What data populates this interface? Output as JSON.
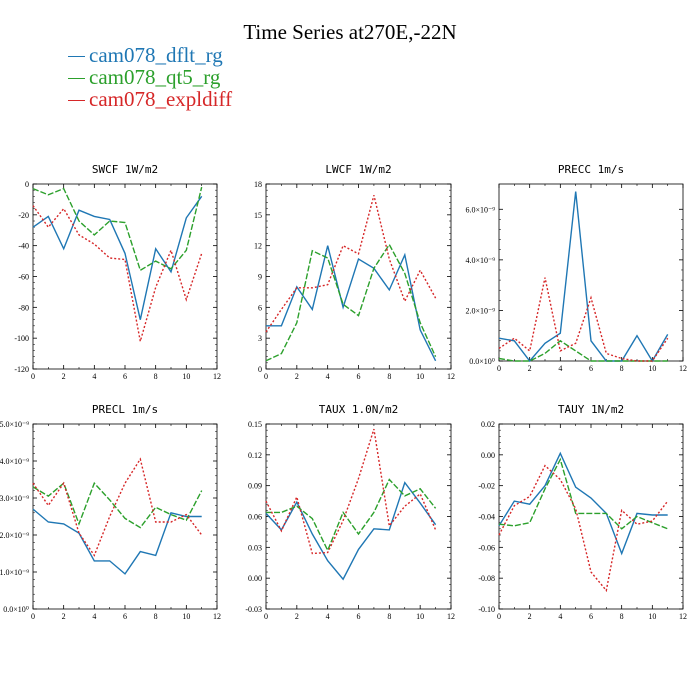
{
  "title": "Time Series at270E,-22N",
  "legend": [
    {
      "label": "cam078_dflt_rg",
      "color": "#1f77b4"
    },
    {
      "label": "cam078_qt5_rg",
      "color": "#2ca02c"
    },
    {
      "label": "cam078_expldiff",
      "color": "#d62728"
    }
  ],
  "chart_data": [
    {
      "type": "line",
      "title": "SWCF   1W/m2",
      "x": [
        0,
        1,
        2,
        3,
        4,
        5,
        6,
        7,
        8,
        9,
        10,
        11
      ],
      "xlim": [
        0,
        12
      ],
      "xticks": [
        "0",
        "2",
        "4",
        "6",
        "8",
        "10",
        "12"
      ],
      "ylim": [
        -120,
        0
      ],
      "yticks": [
        "0",
        "-20",
        "-40",
        "-60",
        "-80",
        "-100",
        "-120"
      ],
      "series": [
        {
          "name": "cam078_dflt_rg",
          "values": [
            -28,
            -21,
            -42,
            -17,
            -21,
            -23,
            -45,
            -88,
            -42,
            -57,
            -22,
            -8
          ]
        },
        {
          "name": "cam078_qt5_rg",
          "values": [
            -3,
            -7,
            -3,
            -24,
            -33,
            -24,
            -25,
            -56,
            -50,
            -55,
            -43,
            -2
          ]
        },
        {
          "name": "cam078_expldiff",
          "values": [
            -14,
            -28,
            -16,
            -33,
            -39,
            -48,
            -49,
            -102,
            -67,
            -43,
            -75,
            -45
          ]
        }
      ]
    },
    {
      "type": "line",
      "title": "LWCF   1W/m2",
      "x": [
        0,
        1,
        2,
        3,
        4,
        5,
        6,
        7,
        8,
        9,
        10,
        11
      ],
      "xlim": [
        0,
        12
      ],
      "xticks": [
        "0",
        "2",
        "4",
        "6",
        "8",
        "10",
        "12"
      ],
      "ylim": [
        0,
        18
      ],
      "yticks": [
        "0",
        "3",
        "6",
        "9",
        "12",
        "15",
        "18"
      ],
      "series": [
        {
          "name": "cam078_dflt_rg",
          "values": [
            4.2,
            4.2,
            8.0,
            5.8,
            12.0,
            6.0,
            10.7,
            9.8,
            7.7,
            11.1,
            3.8,
            0.8
          ]
        },
        {
          "name": "cam078_qt5_rg",
          "values": [
            0.8,
            1.5,
            4.5,
            11.5,
            10.8,
            6.3,
            5.2,
            9.8,
            12.1,
            9.3,
            4.5,
            1.2
          ]
        },
        {
          "name": "cam078_expldiff",
          "values": [
            3.6,
            5.8,
            7.9,
            7.9,
            8.2,
            12.0,
            11.2,
            16.9,
            10.7,
            6.6,
            9.6,
            6.9
          ]
        }
      ]
    },
    {
      "type": "line",
      "title": "PRECC   1m/s",
      "x": [
        0,
        1,
        2,
        3,
        4,
        5,
        6,
        7,
        8,
        9,
        10,
        11
      ],
      "xlim": [
        0,
        12
      ],
      "xticks": [
        "0",
        "2",
        "4",
        "6",
        "8",
        "10",
        "12"
      ],
      "ylim": [
        0,
        7e-09
      ],
      "ytick_values": [
        0,
        2e-09,
        4e-09,
        6e-09
      ],
      "yticks": [
        "0.0×10⁰",
        "2.0×10⁻⁹",
        "4.0×10⁻⁹",
        "6.0×10⁻⁹"
      ],
      "series": [
        {
          "name": "cam078_dflt_rg",
          "values": [
            9e-10,
            8e-10,
            0,
            7e-10,
            1.1e-09,
            6.7e-09,
            8e-10,
            0,
            0,
            1e-09,
            0,
            1.05e-09
          ]
        },
        {
          "name": "cam078_qt5_rg",
          "values": [
            1e-10,
            0,
            0,
            3e-10,
            8e-10,
            4e-10,
            0,
            0,
            0,
            0,
            0,
            0
          ]
        },
        {
          "name": "cam078_expldiff",
          "values": [
            5e-10,
            9e-10,
            4e-10,
            3.3e-09,
            4e-10,
            7e-10,
            2.5e-09,
            3e-10,
            1e-10,
            0,
            0,
            9e-10
          ]
        }
      ]
    },
    {
      "type": "line",
      "title": "PRECL   1m/s",
      "x": [
        0,
        1,
        2,
        3,
        4,
        5,
        6,
        7,
        8,
        9,
        10,
        11
      ],
      "xlim": [
        0,
        12
      ],
      "xticks": [
        "0",
        "2",
        "4",
        "6",
        "8",
        "10",
        "12"
      ],
      "ylim": [
        0,
        5e-09
      ],
      "ytick_values": [
        0,
        1e-09,
        2e-09,
        3e-09,
        4e-09,
        5e-09
      ],
      "yticks": [
        "0.0×10⁰",
        "1.0×10⁻⁹",
        "2.0×10⁻⁹",
        "3.0×10⁻⁹",
        "4.0×10⁻⁹",
        "5.0×10⁻⁹"
      ],
      "series": [
        {
          "name": "cam078_dflt_rg",
          "values": [
            2.7e-09,
            2.35e-09,
            2.3e-09,
            2.05e-09,
            1.3e-09,
            1.3e-09,
            9.5e-10,
            1.55e-09,
            1.45e-09,
            2.6e-09,
            2.5e-09,
            2.5e-09
          ]
        },
        {
          "name": "cam078_qt5_rg",
          "values": [
            3.3e-09,
            3.05e-09,
            3.4e-09,
            2.3e-09,
            3.4e-09,
            2.95e-09,
            2.45e-09,
            2.2e-09,
            2.75e-09,
            2.55e-09,
            2.4e-09,
            3.2e-09
          ]
        },
        {
          "name": "cam078_expldiff",
          "values": [
            3.4e-09,
            2.8e-09,
            3.4e-09,
            2.05e-09,
            1.45e-09,
            2.5e-09,
            3.4e-09,
            4.05e-09,
            2.35e-09,
            2.35e-09,
            2.55e-09,
            2e-09
          ]
        }
      ]
    },
    {
      "type": "line",
      "title": "TAUX   1.0N/m2",
      "x": [
        0,
        1,
        2,
        3,
        4,
        5,
        6,
        7,
        8,
        9,
        10,
        11
      ],
      "xlim": [
        0,
        12
      ],
      "xticks": [
        "0",
        "2",
        "4",
        "6",
        "8",
        "10",
        "12"
      ],
      "ylim": [
        -0.03,
        0.15
      ],
      "yticks": [
        "0.15",
        "0.12",
        "0.09",
        "0.06",
        "0.03",
        "0.00",
        "-0.03"
      ],
      "series": [
        {
          "name": "cam078_dflt_rg",
          "values": [
            0.063,
            0.047,
            0.074,
            0.043,
            0.017,
            -0.001,
            0.028,
            0.048,
            0.047,
            0.093,
            0.073,
            0.052
          ]
        },
        {
          "name": "cam078_qt5_rg",
          "values": [
            0.064,
            0.064,
            0.07,
            0.058,
            0.027,
            0.064,
            0.043,
            0.064,
            0.096,
            0.08,
            0.087,
            0.068
          ]
        },
        {
          "name": "cam078_expldiff",
          "values": [
            0.075,
            0.046,
            0.079,
            0.024,
            0.025,
            0.056,
            0.097,
            0.145,
            0.051,
            0.07,
            0.082,
            0.047
          ]
        }
      ]
    },
    {
      "type": "line",
      "title": "TAUY   1N/m2",
      "x": [
        0,
        1,
        2,
        3,
        4,
        5,
        6,
        7,
        8,
        9,
        10,
        11
      ],
      "xlim": [
        0,
        12
      ],
      "xticks": [
        "0",
        "2",
        "4",
        "6",
        "8",
        "10",
        "12"
      ],
      "ylim": [
        -0.1,
        0.02
      ],
      "yticks": [
        "0.02",
        "0.00",
        "-0.02",
        "-0.04",
        "-0.06",
        "-0.08",
        "-0.10"
      ],
      "series": [
        {
          "name": "cam078_dflt_rg",
          "values": [
            -0.046,
            -0.03,
            -0.032,
            -0.02,
            0.001,
            -0.021,
            -0.028,
            -0.038,
            -0.064,
            -0.038,
            -0.039,
            -0.039
          ]
        },
        {
          "name": "cam078_qt5_rg",
          "values": [
            -0.045,
            -0.046,
            -0.044,
            -0.022,
            -0.003,
            -0.038,
            -0.038,
            -0.038,
            -0.048,
            -0.04,
            -0.044,
            -0.048
          ]
        },
        {
          "name": "cam078_expldiff",
          "values": [
            -0.052,
            -0.033,
            -0.027,
            -0.007,
            -0.016,
            -0.035,
            -0.076,
            -0.088,
            -0.036,
            -0.045,
            -0.043,
            -0.03
          ]
        }
      ]
    }
  ]
}
